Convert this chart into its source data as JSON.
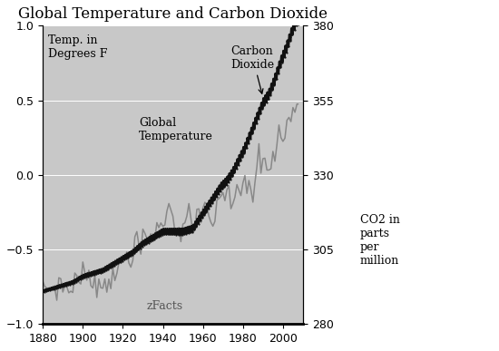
{
  "title": "Global Temperature and Carbon Dioxide",
  "title_fontsize": 12,
  "background_color": "#c8c8c8",
  "fig_background": "#ffffff",
  "temp_color": "#888888",
  "co2_color": "#111111",
  "left_ylabel": "Temp. in\nDegrees F",
  "right_ylabel": "CO2 in\nparts\nper\nmillion",
  "watermark": "zFacts",
  "annotation_co2": "Carbon\nDioxide",
  "annotation_temp": "Global\nTemperature",
  "ylim_left": [
    -1.0,
    1.0
  ],
  "ylim_right": [
    280,
    380
  ],
  "xlim": [
    1880,
    2010
  ],
  "yticks_left": [
    -1.0,
    -0.5,
    0.0,
    0.5,
    1.0
  ],
  "yticks_right": [
    280,
    305,
    330,
    355,
    380
  ],
  "xticks": [
    1880,
    1900,
    1920,
    1940,
    1960,
    1980,
    2000
  ],
  "temp_years": [
    1880,
    1881,
    1882,
    1883,
    1884,
    1885,
    1886,
    1887,
    1888,
    1889,
    1890,
    1891,
    1892,
    1893,
    1894,
    1895,
    1896,
    1897,
    1898,
    1899,
    1900,
    1901,
    1902,
    1903,
    1904,
    1905,
    1906,
    1907,
    1908,
    1909,
    1910,
    1911,
    1912,
    1913,
    1914,
    1915,
    1916,
    1917,
    1918,
    1919,
    1920,
    1921,
    1922,
    1923,
    1924,
    1925,
    1926,
    1927,
    1928,
    1929,
    1930,
    1931,
    1932,
    1933,
    1934,
    1935,
    1936,
    1937,
    1938,
    1939,
    1940,
    1941,
    1942,
    1943,
    1944,
    1945,
    1946,
    1947,
    1948,
    1949,
    1950,
    1951,
    1952,
    1953,
    1954,
    1955,
    1956,
    1957,
    1958,
    1959,
    1960,
    1961,
    1962,
    1963,
    1964,
    1965,
    1966,
    1967,
    1968,
    1969,
    1970,
    1971,
    1972,
    1973,
    1974,
    1975,
    1976,
    1977,
    1978,
    1979,
    1980,
    1981,
    1982,
    1983,
    1984,
    1985,
    1986,
    1987,
    1988,
    1989,
    1990,
    1991,
    1992,
    1993,
    1994,
    1995,
    1996,
    1997,
    1998,
    1999,
    2000,
    2001,
    2002,
    2003,
    2004,
    2005,
    2006,
    2007
  ],
  "temp_vals": [
    -0.78,
    -0.73,
    -0.76,
    -0.78,
    -0.74,
    -0.77,
    -0.76,
    -0.77,
    -0.73,
    -0.72,
    -0.76,
    -0.74,
    -0.77,
    -0.78,
    -0.77,
    -0.73,
    -0.68,
    -0.68,
    -0.73,
    -0.67,
    -0.65,
    -0.66,
    -0.69,
    -0.72,
    -0.74,
    -0.7,
    -0.66,
    -0.73,
    -0.74,
    -0.74,
    -0.73,
    -0.74,
    -0.72,
    -0.72,
    -0.68,
    -0.6,
    -0.66,
    -0.72,
    -0.66,
    -0.58,
    -0.58,
    -0.54,
    -0.54,
    -0.56,
    -0.55,
    -0.5,
    -0.43,
    -0.47,
    -0.48,
    -0.51,
    -0.44,
    -0.4,
    -0.43,
    -0.44,
    -0.39,
    -0.43,
    -0.37,
    -0.34,
    -0.35,
    -0.37,
    -0.33,
    -0.26,
    -0.24,
    -0.26,
    -0.22,
    -0.24,
    -0.33,
    -0.36,
    -0.34,
    -0.4,
    -0.39,
    -0.31,
    -0.28,
    -0.25,
    -0.35,
    -0.38,
    -0.38,
    -0.26,
    -0.22,
    -0.25,
    -0.25,
    -0.22,
    -0.22,
    -0.24,
    -0.31,
    -0.32,
    -0.3,
    -0.22,
    -0.22,
    -0.17,
    -0.14,
    -0.2,
    -0.1,
    -0.07,
    -0.2,
    -0.19,
    -0.24,
    -0.1,
    -0.09,
    -0.12,
    -0.02,
    -0.02,
    -0.14,
    0.02,
    -0.12,
    -0.16,
    -0.11,
    0.05,
    0.14,
    0.03,
    0.12,
    0.1,
    -0.01,
    0.01,
    0.09,
    0.15,
    0.09,
    0.22,
    0.36,
    0.18,
    0.24,
    0.28,
    0.34,
    0.38,
    0.36,
    0.42,
    0.4,
    0.46
  ],
  "co2_years_smooth": [
    1880,
    1885,
    1890,
    1895,
    1900,
    1905,
    1910,
    1915,
    1920,
    1925,
    1930,
    1935,
    1940,
    1945,
    1950,
    1955,
    1958,
    1960,
    1963,
    1966,
    1969,
    1972,
    1975,
    1978,
    1981,
    1984,
    1987,
    1990,
    1993,
    1996,
    1999,
    2002,
    2005,
    2007
  ],
  "co2_vals_smooth": [
    291,
    292,
    293,
    294,
    296,
    297,
    298,
    300,
    302,
    304,
    307,
    309,
    311,
    311,
    311,
    312,
    315,
    317,
    320,
    323,
    326,
    328,
    331,
    335,
    339,
    344,
    349,
    354,
    357,
    362,
    368,
    373,
    379,
    382
  ]
}
